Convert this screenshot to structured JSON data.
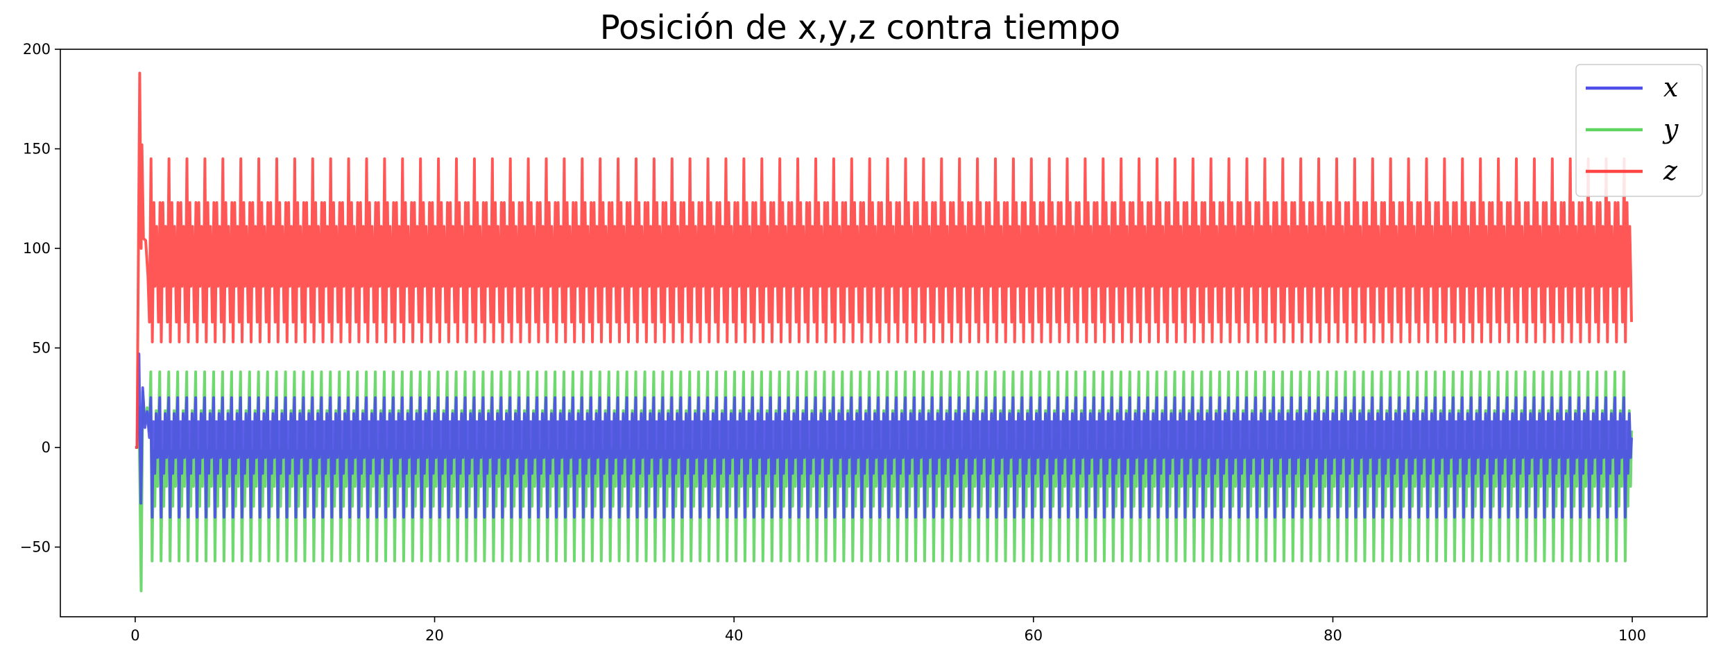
{
  "chart_data": {
    "type": "line",
    "title": "Posición de x,y,z contra tiempo",
    "xlabel": "",
    "ylabel": "",
    "xlim": [
      -5,
      105
    ],
    "ylim": [
      -85,
      200
    ],
    "xticks": [
      0,
      20,
      40,
      60,
      80,
      100
    ],
    "yticks": [
      -50,
      0,
      50,
      100,
      150,
      200
    ],
    "xtick_labels": [
      "0",
      "20",
      "40",
      "60",
      "80",
      "100"
    ],
    "ytick_labels": [
      "−50",
      "0",
      "50",
      "100",
      "150",
      "200"
    ],
    "grid": false,
    "legend_position": "top-right",
    "series": [
      {
        "name": "x",
        "color": "#4d4de8",
        "description_of_shape": "Starts at 0, brief transient up to ~47 near t=0.3, then periodic oscillation with peaks ~22-30 and troughs ~-5 to -35, period ~0.6",
        "start": 0,
        "transient_peak": 47,
        "t_transient": 0.3,
        "periodic_min": -35,
        "periodic_max": 25,
        "period": 0.6
      },
      {
        "name": "y",
        "color": "#5fd45f",
        "start": 0,
        "transient_min": -72,
        "t_transient": 0.4,
        "periodic_min": -57,
        "periodic_max": 38,
        "period": 0.6
      },
      {
        "name": "z",
        "color": "#ff4444",
        "start": 0,
        "transient_peak": 188,
        "t_transient": 0.35,
        "periodic_min": 53,
        "periodic_max": 145,
        "period": 0.6
      }
    ]
  }
}
